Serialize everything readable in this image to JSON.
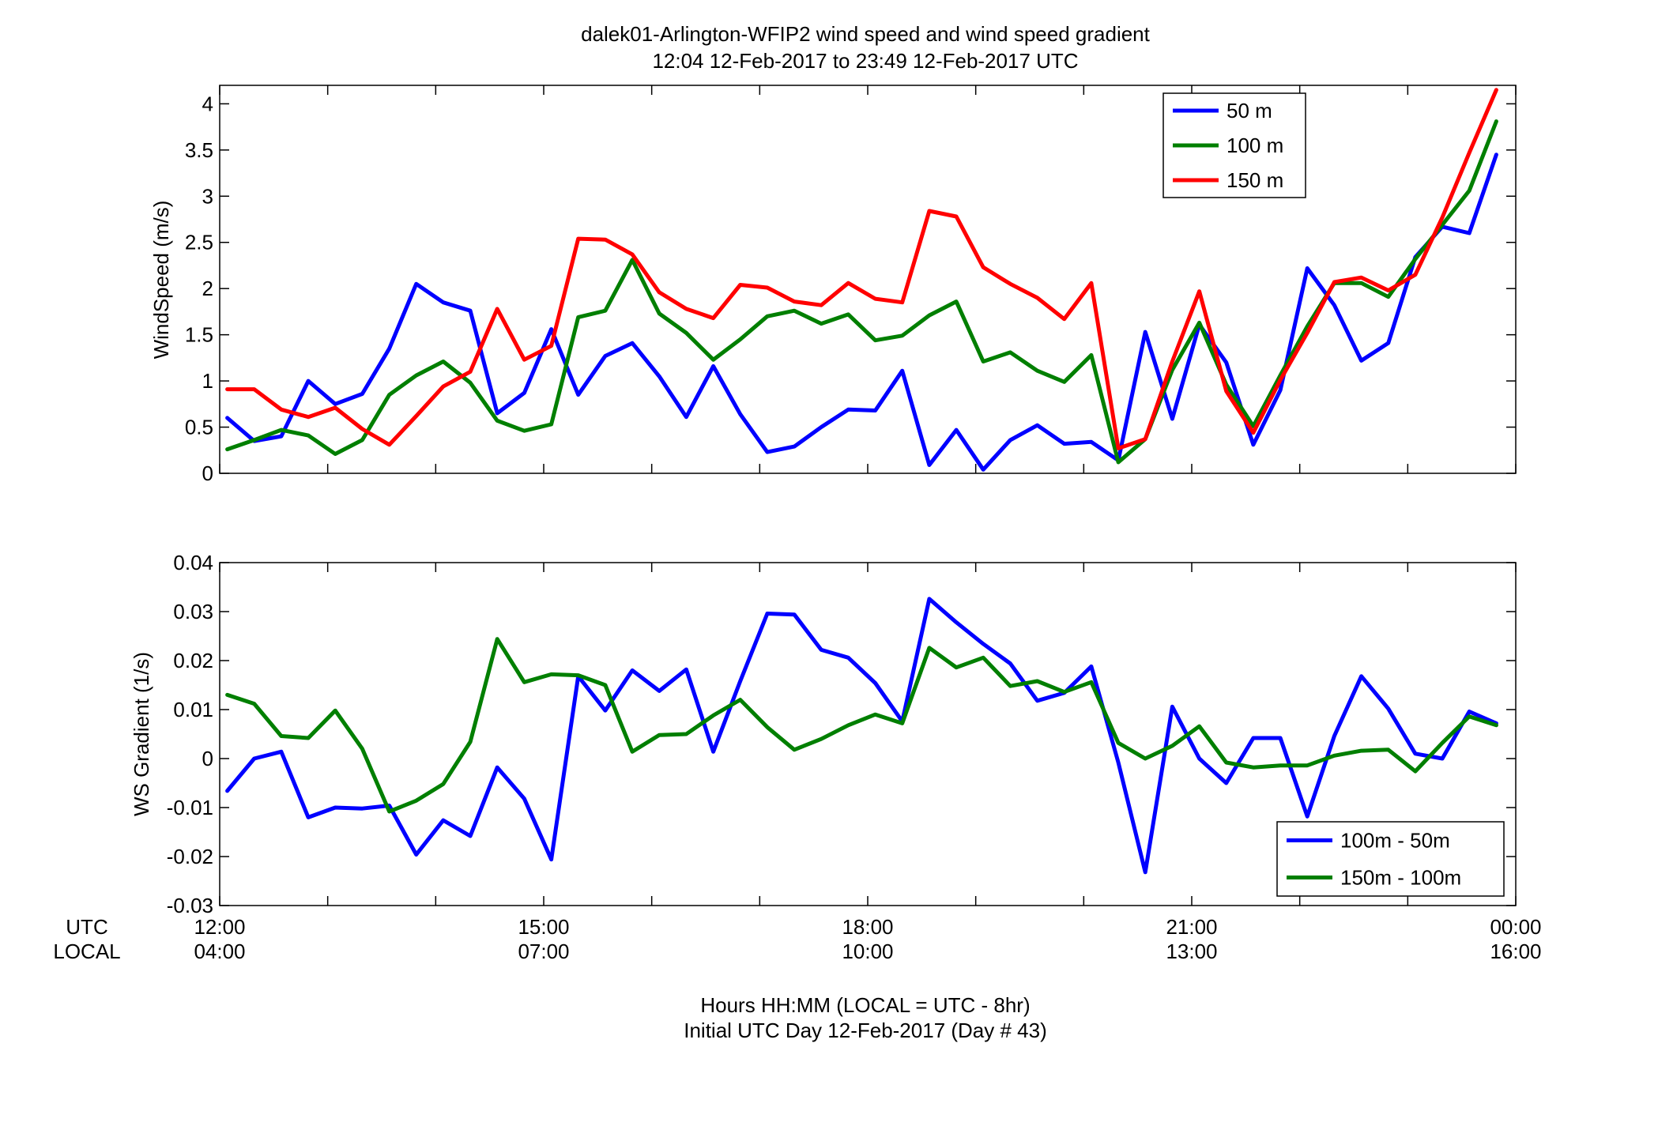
{
  "header": {
    "title": "dalek01-Arlington-WFIP2  wind speed and wind speed gradient",
    "subtitle": "12:04 12-Feb-2017 to 23:49 12-Feb-2017  UTC"
  },
  "footer": {
    "row_label_utc": "UTC",
    "row_label_local": "LOCAL",
    "xlabel_line1": "Hours HH:MM  (LOCAL = UTC - 8hr)",
    "xlabel_line2": "Initial UTC Day 12-Feb-2017 (Day # 43)"
  },
  "x_ticks_utc": [
    "12:00",
    "15:00",
    "18:00",
    "21:00",
    "00:00"
  ],
  "x_ticks_local": [
    "04:00",
    "07:00",
    "10:00",
    "13:00",
    "16:00"
  ],
  "chart_data": [
    {
      "type": "line",
      "ylabel": "WindSpeed (m/s)",
      "xlim": [
        12,
        24
      ],
      "ylim": [
        0,
        4.2
      ],
      "yticks": [
        "0",
        "0.5",
        "1",
        "1.5",
        "2",
        "2.5",
        "3",
        "3.5",
        "4"
      ],
      "grid": false,
      "legend": "top-right",
      "colors": [
        "#0000ff",
        "#007f00",
        "#ff0000"
      ],
      "x": [
        12.07,
        12.32,
        12.57,
        12.82,
        13.07,
        13.32,
        13.57,
        13.82,
        14.07,
        14.32,
        14.57,
        14.82,
        15.07,
        15.32,
        15.57,
        15.82,
        16.07,
        16.32,
        16.57,
        16.82,
        17.07,
        17.32,
        17.57,
        17.82,
        18.07,
        18.32,
        18.57,
        18.82,
        19.07,
        19.32,
        19.57,
        19.82,
        20.07,
        20.32,
        20.57,
        20.82,
        21.07,
        21.32,
        21.57,
        21.82,
        22.07,
        22.32,
        22.57,
        22.82,
        23.07,
        23.32,
        23.57,
        23.82
      ],
      "series": [
        {
          "name": "50 m",
          "values": [
            0.6,
            0.35,
            0.4,
            1.0,
            0.75,
            0.86,
            1.35,
            2.05,
            1.85,
            1.76,
            0.65,
            0.87,
            1.56,
            0.85,
            1.27,
            1.41,
            1.05,
            0.61,
            1.16,
            0.64,
            0.23,
            0.29,
            0.5,
            0.69,
            0.68,
            1.11,
            0.09,
            0.47,
            0.04,
            0.36,
            0.52,
            0.32,
            0.34,
            0.14,
            1.53,
            0.59,
            1.61,
            1.2,
            0.31,
            0.9,
            2.22,
            1.82,
            1.22,
            1.41,
            2.34,
            2.67,
            2.6,
            3.45
          ]
        },
        {
          "name": "100 m",
          "values": [
            0.26,
            0.36,
            0.47,
            0.41,
            0.21,
            0.36,
            0.85,
            1.06,
            1.21,
            0.98,
            0.57,
            0.46,
            0.53,
            1.69,
            1.76,
            2.31,
            1.73,
            1.52,
            1.23,
            1.45,
            1.7,
            1.76,
            1.62,
            1.72,
            1.44,
            1.49,
            1.71,
            1.86,
            1.21,
            1.31,
            1.11,
            0.99,
            1.28,
            0.12,
            0.37,
            1.12,
            1.63,
            0.96,
            0.51,
            1.06,
            1.59,
            2.06,
            2.06,
            1.91,
            2.32,
            2.69,
            3.06,
            3.81
          ]
        },
        {
          "name": "150 m",
          "values": [
            0.91,
            0.91,
            0.69,
            0.61,
            0.71,
            0.48,
            0.31,
            0.62,
            0.94,
            1.1,
            1.78,
            1.23,
            1.38,
            2.54,
            2.53,
            2.37,
            1.96,
            1.78,
            1.68,
            2.04,
            2.01,
            1.86,
            1.82,
            2.06,
            1.89,
            1.85,
            2.84,
            2.78,
            2.23,
            2.05,
            1.9,
            1.67,
            2.06,
            0.27,
            0.37,
            1.21,
            1.97,
            0.89,
            0.44,
            1.01,
            1.52,
            2.07,
            2.12,
            1.98,
            2.15,
            2.77,
            3.47,
            4.15
          ]
        }
      ]
    },
    {
      "type": "line",
      "ylabel": "WS Gradient (1/s)",
      "xlim": [
        12,
        24
      ],
      "ylim": [
        -0.03,
        0.04
      ],
      "yticks": [
        "-0.03",
        "-0.02",
        "-0.01",
        "0",
        "0.01",
        "0.02",
        "0.03",
        "0.04"
      ],
      "grid": false,
      "legend": "bottom-right",
      "colors": [
        "#0000ff",
        "#007f00"
      ],
      "x": [
        12.07,
        12.32,
        12.57,
        12.82,
        13.07,
        13.32,
        13.57,
        13.82,
        14.07,
        14.32,
        14.57,
        14.82,
        15.07,
        15.32,
        15.57,
        15.82,
        16.07,
        16.32,
        16.57,
        16.82,
        17.07,
        17.32,
        17.57,
        17.82,
        18.07,
        18.32,
        18.57,
        18.82,
        19.07,
        19.32,
        19.57,
        19.82,
        20.07,
        20.32,
        20.57,
        20.82,
        21.07,
        21.32,
        21.57,
        21.82,
        22.07,
        22.32,
        22.57,
        22.82,
        23.07,
        23.32,
        23.57,
        23.82
      ],
      "series": [
        {
          "name": "100m - 50m",
          "values": [
            -0.0066,
            0.0,
            0.0014,
            -0.012,
            -0.01,
            -0.0102,
            -0.0096,
            -0.0196,
            -0.0126,
            -0.0158,
            -0.0018,
            -0.0082,
            -0.0206,
            0.0168,
            0.0098,
            0.018,
            0.0138,
            0.0182,
            0.0014,
            0.0158,
            0.0296,
            0.0294,
            0.0222,
            0.0206,
            0.0154,
            0.0076,
            0.0326,
            0.0278,
            0.0234,
            0.0194,
            0.0118,
            0.0134,
            0.0188,
            -0.0008,
            -0.0232,
            0.0106,
            0.0,
            -0.005,
            0.0042,
            0.0042,
            -0.0118,
            0.0046,
            0.0168,
            0.0102,
            0.001,
            0.0,
            0.0096,
            0.0072
          ]
        },
        {
          "name": "150m - 100m",
          "values": [
            0.013,
            0.0112,
            0.0046,
            0.0042,
            0.0098,
            0.002,
            -0.0108,
            -0.0086,
            -0.0052,
            0.0034,
            0.0244,
            0.0156,
            0.0172,
            0.017,
            0.015,
            0.0014,
            0.0048,
            0.005,
            0.0088,
            0.012,
            0.0064,
            0.0018,
            0.004,
            0.0068,
            0.009,
            0.0072,
            0.0226,
            0.0186,
            0.0206,
            0.0148,
            0.0158,
            0.0136,
            0.0156,
            0.0032,
            0.0,
            0.0026,
            0.0066,
            -0.0008,
            -0.0018,
            -0.0014,
            -0.0014,
            0.0006,
            0.0016,
            0.0018,
            -0.0026,
            0.0032,
            0.0086,
            0.0068
          ]
        }
      ]
    }
  ]
}
